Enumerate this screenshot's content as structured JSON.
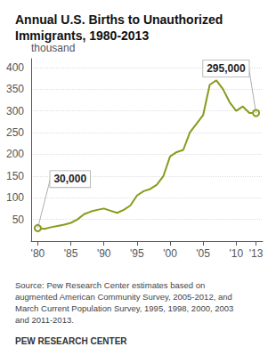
{
  "chart_data": {
    "type": "line",
    "title": "Annual U.S. Births to Unauthorized\nImmigrants, 1980-2013",
    "ylabel": "thousand",
    "x": [
      1980,
      1981,
      1982,
      1983,
      1984,
      1985,
      1986,
      1987,
      1988,
      1989,
      1990,
      1991,
      1992,
      1993,
      1994,
      1995,
      1996,
      1997,
      1998,
      1999,
      2000,
      2001,
      2002,
      2003,
      2004,
      2005,
      2006,
      2007,
      2008,
      2009,
      2010,
      2011,
      2012,
      2013
    ],
    "values": [
      30,
      28,
      32,
      35,
      38,
      42,
      50,
      62,
      68,
      72,
      75,
      70,
      65,
      72,
      82,
      105,
      115,
      120,
      130,
      150,
      195,
      205,
      210,
      250,
      270,
      290,
      360,
      370,
      350,
      320,
      300,
      310,
      295,
      295
    ],
    "color": "#8a9a1a",
    "xlim": [
      1979,
      2014
    ],
    "xticks": [
      {
        "value": 1980,
        "label": "'80"
      },
      {
        "value": 1985,
        "label": "'85"
      },
      {
        "value": 1990,
        "label": "'90"
      },
      {
        "value": 1995,
        "label": "'95"
      },
      {
        "value": 2000,
        "label": "'00"
      },
      {
        "value": 2005,
        "label": "'05"
      },
      {
        "value": 2010,
        "label": "'10"
      },
      {
        "value": 2013,
        "label": "'13"
      }
    ],
    "ylim": [
      0,
      420
    ],
    "yticks": [
      50,
      100,
      150,
      200,
      250,
      300,
      350,
      400
    ],
    "grid": true,
    "annotations": [
      {
        "text": "30,000",
        "x": 1980,
        "y": 30
      },
      {
        "text": "295,000",
        "x": 2013,
        "y": 295
      }
    ],
    "source": "Source: Pew Research Center estimates based on\naugmented American Community Survey, 2005-2012, and\nMarch Current Population Survey, 1995, 1998, 2000, 2003\nand 2011-2013.",
    "footer": "PEW RESEARCH CENTER"
  }
}
